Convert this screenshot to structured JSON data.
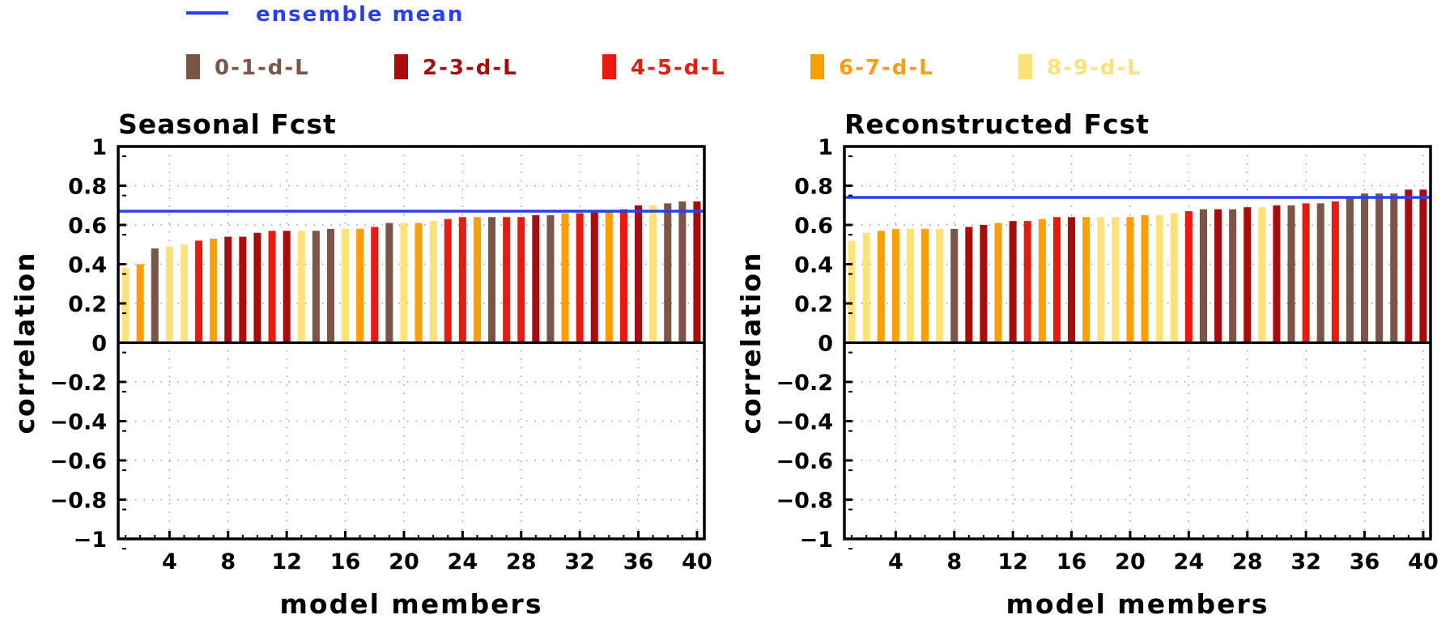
{
  "legend": {
    "mean_label": "ensemble mean",
    "mean_color": "#2a3ff0",
    "groups": [
      {
        "key": "g0",
        "label": "0-1-d-L",
        "color": "#7b5548",
        "text_color": "#7b5548"
      },
      {
        "key": "g1",
        "label": "2-3-d-L",
        "color": "#a70d0d",
        "text_color": "#a70d0d"
      },
      {
        "key": "g2",
        "label": "4-5-d-L",
        "color": "#e81b10",
        "text_color": "#e81b10"
      },
      {
        "key": "g3",
        "label": "6-7-d-L",
        "color": "#fb9e08",
        "text_color": "#fb9e08"
      },
      {
        "key": "g4",
        "label": "8-9-d-L",
        "color": "#fde27a",
        "text_color": "#fde27a"
      }
    ]
  },
  "chart_data": [
    {
      "type": "bar",
      "title": "Seasonal Fcst",
      "xlabel": "model members",
      "ylabel": "correlation",
      "ylim": [
        -1,
        1
      ],
      "xlim": [
        0.5,
        40.5
      ],
      "yticks": [
        "1",
        "0.8",
        "0.6",
        "0.4",
        "0.2",
        "0",
        "-0.2",
        "-0.4",
        "-0.6",
        "-0.8",
        "-1"
      ],
      "xticks": [
        "4",
        "8",
        "12",
        "16",
        "20",
        "24",
        "28",
        "32",
        "36",
        "40"
      ],
      "grid": true,
      "ensemble_mean": 0.67,
      "x": [
        1,
        2,
        3,
        4,
        5,
        6,
        7,
        8,
        9,
        10,
        11,
        12,
        13,
        14,
        15,
        16,
        17,
        18,
        19,
        20,
        21,
        22,
        23,
        24,
        25,
        26,
        27,
        28,
        29,
        30,
        31,
        32,
        33,
        34,
        35,
        36,
        37,
        38,
        39,
        40
      ],
      "values": [
        0.38,
        0.4,
        0.48,
        0.49,
        0.5,
        0.52,
        0.53,
        0.54,
        0.54,
        0.56,
        0.57,
        0.57,
        0.57,
        0.57,
        0.58,
        0.58,
        0.58,
        0.59,
        0.61,
        0.61,
        0.61,
        0.62,
        0.63,
        0.64,
        0.64,
        0.64,
        0.64,
        0.64,
        0.65,
        0.65,
        0.66,
        0.66,
        0.67,
        0.67,
        0.68,
        0.7,
        0.7,
        0.71,
        0.72,
        0.72
      ],
      "groups": [
        "g4",
        "g3",
        "g0",
        "g4",
        "g4",
        "g2",
        "g3",
        "g1",
        "g1",
        "g1",
        "g2",
        "g1",
        "g4",
        "g0",
        "g0",
        "g4",
        "g3",
        "g2",
        "g0",
        "g4",
        "g3",
        "g4",
        "g2",
        "g2",
        "g3",
        "g0",
        "g2",
        "g2",
        "g1",
        "g0",
        "g3",
        "g2",
        "g1",
        "g3",
        "g2",
        "g1",
        "g4",
        "g0",
        "g0",
        "g1"
      ]
    },
    {
      "type": "bar",
      "title": "Reconstructed Fcst",
      "xlabel": "model members",
      "ylabel": "correlation",
      "ylim": [
        -1,
        1
      ],
      "xlim": [
        0.5,
        40.5
      ],
      "yticks": [
        "1",
        "0.8",
        "0.6",
        "0.4",
        "0.2",
        "0",
        "-0.2",
        "-0.4",
        "-0.6",
        "-0.8",
        "-1"
      ],
      "xticks": [
        "4",
        "8",
        "12",
        "16",
        "20",
        "24",
        "28",
        "32",
        "36",
        "40"
      ],
      "grid": true,
      "ensemble_mean": 0.74,
      "x": [
        1,
        2,
        3,
        4,
        5,
        6,
        7,
        8,
        9,
        10,
        11,
        12,
        13,
        14,
        15,
        16,
        17,
        18,
        19,
        20,
        21,
        22,
        23,
        24,
        25,
        26,
        27,
        28,
        29,
        30,
        31,
        32,
        33,
        34,
        35,
        36,
        37,
        38,
        39,
        40
      ],
      "values": [
        0.52,
        0.56,
        0.57,
        0.58,
        0.58,
        0.58,
        0.58,
        0.58,
        0.59,
        0.6,
        0.61,
        0.62,
        0.62,
        0.63,
        0.64,
        0.64,
        0.64,
        0.64,
        0.64,
        0.64,
        0.65,
        0.65,
        0.66,
        0.67,
        0.68,
        0.68,
        0.68,
        0.69,
        0.69,
        0.7,
        0.7,
        0.71,
        0.71,
        0.72,
        0.74,
        0.76,
        0.76,
        0.76,
        0.78,
        0.78
      ],
      "groups": [
        "g4",
        "g4",
        "g3",
        "g3",
        "g4",
        "g3",
        "g4",
        "g0",
        "g1",
        "g1",
        "g3",
        "g1",
        "g2",
        "g3",
        "g2",
        "g1",
        "g3",
        "g4",
        "g4",
        "g3",
        "g3",
        "g4",
        "g4",
        "g2",
        "g0",
        "g1",
        "g0",
        "g1",
        "g4",
        "g1",
        "g0",
        "g2",
        "g0",
        "g2",
        "g0",
        "g0",
        "g0",
        "g0",
        "g1",
        "g1"
      ]
    }
  ]
}
